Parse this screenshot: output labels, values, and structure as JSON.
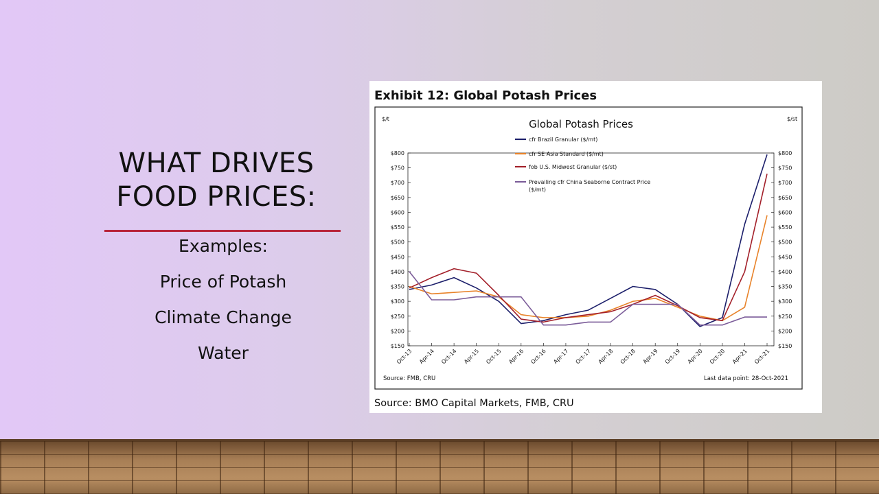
{
  "slide": {
    "title_lines": [
      "WHAT DRIVES",
      "FOOD PRICES:"
    ],
    "examples": [
      "Examples:",
      "Price of Potash",
      "Climate Change",
      "Water"
    ]
  },
  "exhibit": {
    "heading": "Exhibit 12: Global Potash Prices",
    "source": "Source: BMO Capital Markets, FMB, CRU"
  },
  "chart_data": {
    "type": "line",
    "title": "Global Potash Prices",
    "left_unit": "$/t",
    "right_unit": "$/st",
    "y_ticks_left": [
      "$800",
      "$750",
      "$700",
      "$650",
      "$600",
      "$550",
      "$500",
      "$450",
      "$400",
      "$350",
      "$300",
      "$250",
      "$200",
      "$150"
    ],
    "y_ticks_right": [
      "$800",
      "$750",
      "$700",
      "$650",
      "$600",
      "$550",
      "$500",
      "$450",
      "$400",
      "$350",
      "$300",
      "$250",
      "$200",
      "$150"
    ],
    "ylim_left": [
      150,
      800
    ],
    "ylim_right": [
      150,
      800
    ],
    "x_ticks": [
      "Oct-13",
      "Apr-14",
      "Oct-14",
      "Apr-15",
      "Oct-15",
      "Apr-16",
      "Oct-16",
      "Apr-17",
      "Oct-17",
      "Apr-18",
      "Oct-18",
      "Apr-19",
      "Oct-19",
      "Apr-20",
      "Oct-20",
      "Apr-21",
      "Oct-21"
    ],
    "source_note": "Source: FMB, CRU",
    "last_point_note": "Last data point: 28-Oct-2021",
    "legend_position": "top-center",
    "series": [
      {
        "name": "cfr Brazil Granular ($/mt)",
        "color": "#1c1f6b",
        "x": [
          "Oct-13",
          "Apr-14",
          "Oct-14",
          "Apr-15",
          "Oct-15",
          "Apr-16",
          "Oct-16",
          "Apr-17",
          "Oct-17",
          "Apr-18",
          "Oct-18",
          "Apr-19",
          "Oct-19",
          "Apr-20",
          "Oct-20",
          "Apr-21",
          "Oct-21"
        ],
        "values": [
          340,
          355,
          380,
          345,
          300,
          225,
          235,
          255,
          270,
          310,
          350,
          340,
          290,
          215,
          245,
          560,
          795
        ]
      },
      {
        "name": "cfr SE Asia Standard ($/mt)",
        "color": "#e8832a",
        "x": [
          "Oct-13",
          "Apr-14",
          "Oct-14",
          "Apr-15",
          "Oct-15",
          "Apr-16",
          "Oct-16",
          "Apr-17",
          "Oct-17",
          "Apr-18",
          "Oct-18",
          "Apr-19",
          "Oct-19",
          "Apr-20",
          "Oct-20",
          "Apr-21",
          "Oct-21"
        ],
        "values": [
          350,
          325,
          330,
          335,
          315,
          255,
          245,
          245,
          250,
          270,
          300,
          310,
          280,
          250,
          235,
          280,
          590
        ]
      },
      {
        "name": "fob U.S. Midwest Granular ($/st)",
        "color": "#a3202a",
        "x": [
          "Oct-13",
          "Apr-14",
          "Oct-14",
          "Apr-15",
          "Oct-15",
          "Apr-16",
          "Oct-16",
          "Apr-17",
          "Oct-17",
          "Apr-18",
          "Oct-18",
          "Apr-19",
          "Oct-19",
          "Apr-20",
          "Oct-20",
          "Apr-21",
          "Oct-21"
        ],
        "values": [
          345,
          380,
          410,
          395,
          320,
          240,
          230,
          245,
          255,
          265,
          290,
          320,
          285,
          245,
          235,
          400,
          730
        ]
      },
      {
        "name": "Prevailing cfr China Seaborne Contract Price ($/mt)",
        "color": "#7b5c99",
        "x": [
          "Oct-13",
          "Apr-14",
          "Oct-14",
          "Apr-15",
          "Oct-15",
          "Apr-16",
          "Oct-16",
          "Apr-17",
          "Oct-17",
          "Apr-18",
          "Oct-18",
          "Apr-19",
          "Oct-19",
          "Apr-20",
          "Oct-20",
          "Apr-21",
          "Oct-21"
        ],
        "values": [
          400,
          305,
          305,
          315,
          315,
          315,
          220,
          220,
          230,
          230,
          290,
          290,
          290,
          220,
          220,
          247,
          247
        ]
      }
    ]
  }
}
